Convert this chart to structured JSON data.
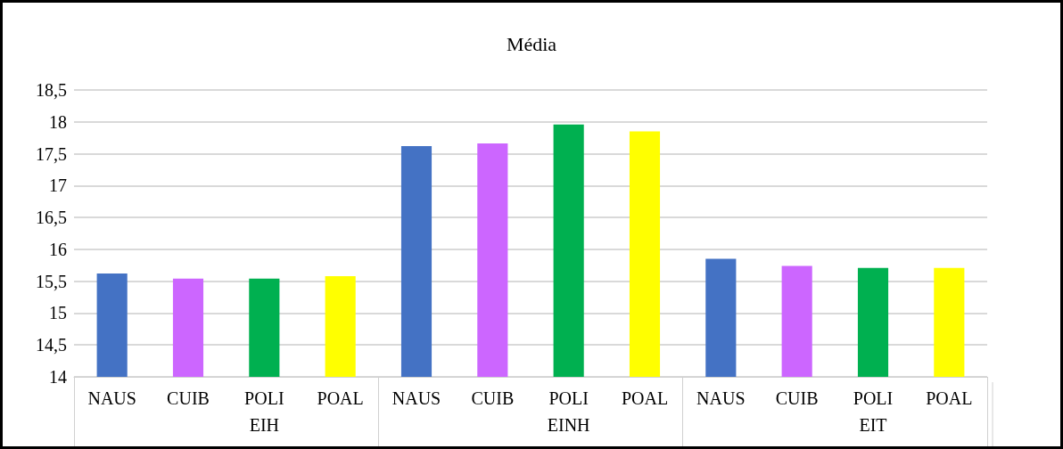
{
  "chart_data": {
    "type": "bar",
    "title": "Média",
    "categories": [
      "NAUS",
      "CUIB",
      "POLI",
      "POAL",
      "NAUS",
      "CUIB",
      "POLI",
      "POAL",
      "NAUS",
      "CUIB",
      "POLI",
      "POAL"
    ],
    "values": [
      15.62,
      15.54,
      15.54,
      15.58,
      17.62,
      17.66,
      17.96,
      17.85,
      15.85,
      15.74,
      15.71,
      15.71
    ],
    "colors": [
      "#4472c4",
      "#cc66ff",
      "#00b050",
      "#ffff00",
      "#4472c4",
      "#cc66ff",
      "#00b050",
      "#ffff00",
      "#4472c4",
      "#cc66ff",
      "#00b050",
      "#ffff00"
    ],
    "annotations": [
      "EIH",
      "EINH",
      "EIT"
    ],
    "ylim": [
      14,
      18.5
    ],
    "yticks": [
      14,
      {
        "value": 14.5,
        "label": "14,5"
      },
      15,
      {
        "value": 15.5,
        "label": "15,5"
      },
      16,
      {
        "value": 16.5,
        "label": "16,5"
      },
      17,
      {
        "value": 17.5,
        "label": "17,5"
      },
      18,
      {
        "value": 18.5,
        "label": "18,5"
      }
    ],
    "grid": "y"
  }
}
